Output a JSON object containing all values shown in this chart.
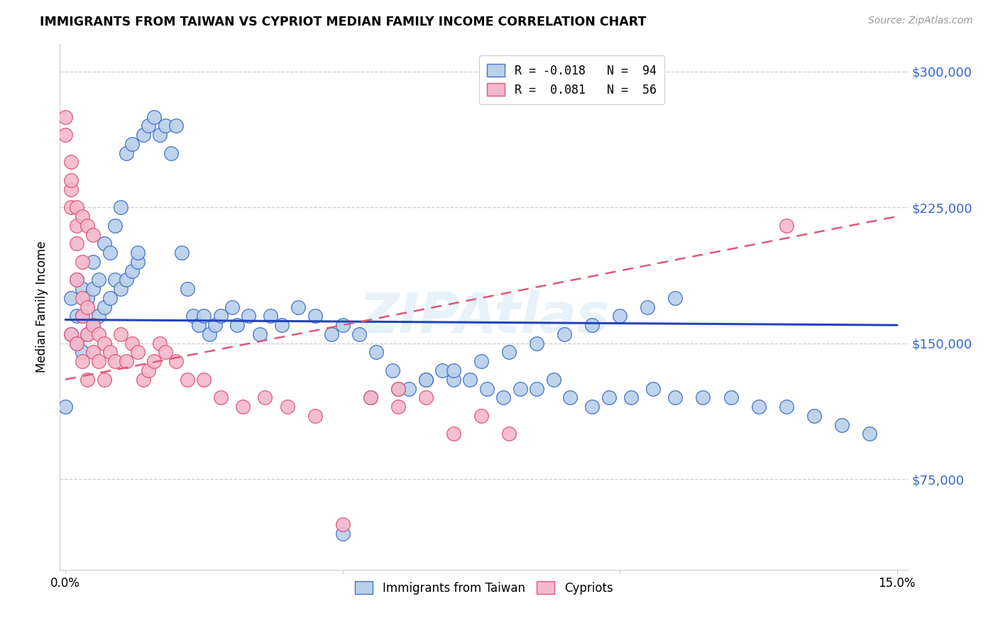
{
  "title": "IMMIGRANTS FROM TAIWAN VS CYPRIOT MEDIAN FAMILY INCOME CORRELATION CHART",
  "source": "Source: ZipAtlas.com",
  "ylabel": "Median Family Income",
  "yticks": [
    75000,
    150000,
    225000,
    300000
  ],
  "ytick_labels": [
    "$75,000",
    "$150,000",
    "$225,000",
    "$300,000"
  ],
  "xlim": [
    -0.001,
    0.152
  ],
  "ylim": [
    25000,
    315000
  ],
  "legend_blue_R": "R = -0.018",
  "legend_blue_N": "N = 94",
  "legend_pink_R": "R =  0.081",
  "legend_pink_N": "N = 56",
  "blue_face_color": "#b8d0ea",
  "blue_edge_color": "#4472c4",
  "pink_face_color": "#f4b8cc",
  "pink_edge_color": "#e05878",
  "blue_line_color": "#2244bb",
  "pink_line_color": "#e05878",
  "watermark": "ZIPAtlas",
  "taiwan_x": [
    0.0,
    0.001,
    0.001,
    0.002,
    0.002,
    0.002,
    0.003,
    0.003,
    0.003,
    0.004,
    0.004,
    0.005,
    0.005,
    0.005,
    0.006,
    0.006,
    0.007,
    0.007,
    0.008,
    0.008,
    0.009,
    0.009,
    0.01,
    0.01,
    0.011,
    0.011,
    0.012,
    0.012,
    0.013,
    0.013,
    0.014,
    0.015,
    0.016,
    0.017,
    0.018,
    0.019,
    0.02,
    0.021,
    0.022,
    0.023,
    0.024,
    0.025,
    0.026,
    0.027,
    0.028,
    0.03,
    0.031,
    0.033,
    0.035,
    0.037,
    0.039,
    0.042,
    0.045,
    0.048,
    0.05,
    0.053,
    0.056,
    0.059,
    0.062,
    0.065,
    0.068,
    0.07,
    0.073,
    0.076,
    0.079,
    0.082,
    0.085,
    0.088,
    0.091,
    0.095,
    0.098,
    0.102,
    0.106,
    0.11,
    0.115,
    0.12,
    0.125,
    0.13,
    0.135,
    0.14,
    0.145,
    0.05,
    0.055,
    0.06,
    0.065,
    0.07,
    0.075,
    0.08,
    0.085,
    0.09,
    0.095,
    0.1,
    0.105,
    0.11
  ],
  "taiwan_y": [
    115000,
    155000,
    175000,
    150000,
    165000,
    185000,
    145000,
    165000,
    180000,
    155000,
    175000,
    160000,
    180000,
    195000,
    165000,
    185000,
    170000,
    205000,
    175000,
    200000,
    185000,
    215000,
    180000,
    225000,
    185000,
    255000,
    190000,
    260000,
    195000,
    200000,
    265000,
    270000,
    275000,
    265000,
    270000,
    255000,
    270000,
    200000,
    180000,
    165000,
    160000,
    165000,
    155000,
    160000,
    165000,
    170000,
    160000,
    165000,
    155000,
    165000,
    160000,
    170000,
    165000,
    155000,
    160000,
    155000,
    145000,
    135000,
    125000,
    130000,
    135000,
    130000,
    130000,
    125000,
    120000,
    125000,
    125000,
    130000,
    120000,
    115000,
    120000,
    120000,
    125000,
    120000,
    120000,
    120000,
    115000,
    115000,
    110000,
    105000,
    100000,
    45000,
    120000,
    125000,
    130000,
    135000,
    140000,
    145000,
    150000,
    155000,
    160000,
    165000,
    170000,
    175000
  ],
  "cypriot_x": [
    0.0,
    0.0,
    0.001,
    0.001,
    0.001,
    0.002,
    0.002,
    0.002,
    0.003,
    0.003,
    0.003,
    0.004,
    0.004,
    0.005,
    0.005,
    0.006,
    0.006,
    0.007,
    0.007,
    0.008,
    0.009,
    0.01,
    0.011,
    0.012,
    0.013,
    0.014,
    0.015,
    0.016,
    0.017,
    0.018,
    0.02,
    0.022,
    0.025,
    0.028,
    0.032,
    0.036,
    0.04,
    0.045,
    0.05,
    0.055,
    0.06,
    0.06,
    0.065,
    0.07,
    0.075,
    0.08,
    0.001,
    0.002,
    0.003,
    0.004,
    0.005,
    0.001,
    0.002,
    0.003,
    0.004,
    0.13
  ],
  "cypriot_y": [
    275000,
    265000,
    250000,
    235000,
    225000,
    215000,
    205000,
    185000,
    195000,
    175000,
    165000,
    170000,
    155000,
    160000,
    145000,
    155000,
    140000,
    150000,
    130000,
    145000,
    140000,
    155000,
    140000,
    150000,
    145000,
    130000,
    135000,
    140000,
    150000,
    145000,
    140000,
    130000,
    130000,
    120000,
    115000,
    120000,
    115000,
    110000,
    50000,
    120000,
    115000,
    125000,
    120000,
    100000,
    110000,
    100000,
    240000,
    225000,
    220000,
    215000,
    210000,
    155000,
    150000,
    140000,
    130000,
    215000
  ],
  "blue_trendline_x": [
    0.0,
    0.15
  ],
  "blue_trendline_y": [
    163000,
    160000
  ],
  "pink_trendline_x": [
    0.0,
    0.15
  ],
  "pink_trendline_y": [
    130000,
    220000
  ]
}
